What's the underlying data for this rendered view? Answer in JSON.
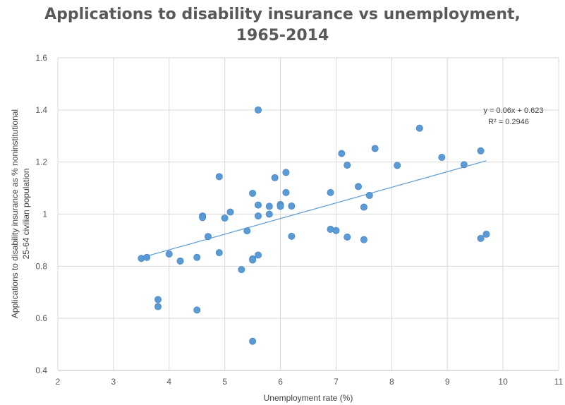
{
  "chart_data": {
    "type": "scatter",
    "title_lines": [
      "Applications to disability insurance vs unemployment,",
      "1965-2014"
    ],
    "xlabel": "Unemployment rate (%)",
    "ylabel_lines": [
      "Applications to disability insurance as % noninstitutional",
      "25-64 civilian population"
    ],
    "xlim": [
      2,
      11
    ],
    "ylim": [
      0.4,
      1.6
    ],
    "x_ticks": [
      2,
      3,
      4,
      5,
      6,
      7,
      8,
      9,
      10,
      11
    ],
    "y_ticks": [
      0.4,
      0.6,
      0.8,
      1,
      1.2,
      1.4,
      1.6
    ],
    "y_tick_labels": [
      "0.4",
      "0.6",
      "0.8",
      "1",
      "1.2",
      "1.4",
      "1.6"
    ],
    "grid": true,
    "marker_color": "#5b9bd5",
    "trendline_color": "#5b9bd5",
    "trendline": {
      "slope": 0.06,
      "intercept": 0.623,
      "x_range": [
        3.5,
        9.7
      ]
    },
    "trendline_labels": [
      "y = 0.06x + 0.623",
      "R² = 0.2946"
    ],
    "points": [
      {
        "x": 3.5,
        "y": 0.83
      },
      {
        "x": 3.6,
        "y": 0.834
      },
      {
        "x": 3.8,
        "y": 0.672
      },
      {
        "x": 3.8,
        "y": 0.645
      },
      {
        "x": 4.0,
        "y": 0.847
      },
      {
        "x": 4.2,
        "y": 0.82
      },
      {
        "x": 4.5,
        "y": 0.834
      },
      {
        "x": 4.5,
        "y": 0.632
      },
      {
        "x": 4.6,
        "y": 0.993
      },
      {
        "x": 4.6,
        "y": 0.987
      },
      {
        "x": 4.7,
        "y": 0.914
      },
      {
        "x": 4.9,
        "y": 1.144
      },
      {
        "x": 4.9,
        "y": 0.852
      },
      {
        "x": 5.0,
        "y": 0.985
      },
      {
        "x": 5.1,
        "y": 1.008
      },
      {
        "x": 5.3,
        "y": 0.787
      },
      {
        "x": 5.4,
        "y": 0.936
      },
      {
        "x": 5.5,
        "y": 1.08
      },
      {
        "x": 5.5,
        "y": 0.828
      },
      {
        "x": 5.5,
        "y": 0.824
      },
      {
        "x": 5.5,
        "y": 0.512
      },
      {
        "x": 5.6,
        "y": 1.4
      },
      {
        "x": 5.6,
        "y": 1.035
      },
      {
        "x": 5.6,
        "y": 0.993
      },
      {
        "x": 5.6,
        "y": 0.843
      },
      {
        "x": 5.8,
        "y": 1.03
      },
      {
        "x": 5.8,
        "y": 1.0
      },
      {
        "x": 5.9,
        "y": 1.14
      },
      {
        "x": 6.0,
        "y": 1.037
      },
      {
        "x": 6.0,
        "y": 1.03
      },
      {
        "x": 6.1,
        "y": 1.16
      },
      {
        "x": 6.1,
        "y": 1.083
      },
      {
        "x": 6.2,
        "y": 1.031
      },
      {
        "x": 6.2,
        "y": 0.915
      },
      {
        "x": 6.9,
        "y": 1.083
      },
      {
        "x": 6.9,
        "y": 0.942
      },
      {
        "x": 7.0,
        "y": 0.937
      },
      {
        "x": 7.1,
        "y": 1.233
      },
      {
        "x": 7.2,
        "y": 1.188
      },
      {
        "x": 7.2,
        "y": 0.912
      },
      {
        "x": 7.4,
        "y": 1.106
      },
      {
        "x": 7.5,
        "y": 1.027
      },
      {
        "x": 7.5,
        "y": 0.902
      },
      {
        "x": 7.6,
        "y": 1.072
      },
      {
        "x": 7.7,
        "y": 1.252
      },
      {
        "x": 8.1,
        "y": 1.187
      },
      {
        "x": 8.5,
        "y": 1.33
      },
      {
        "x": 8.9,
        "y": 1.218
      },
      {
        "x": 9.3,
        "y": 1.19
      },
      {
        "x": 9.6,
        "y": 1.243
      },
      {
        "x": 9.6,
        "y": 0.907
      },
      {
        "x": 9.7,
        "y": 0.923
      }
    ]
  }
}
